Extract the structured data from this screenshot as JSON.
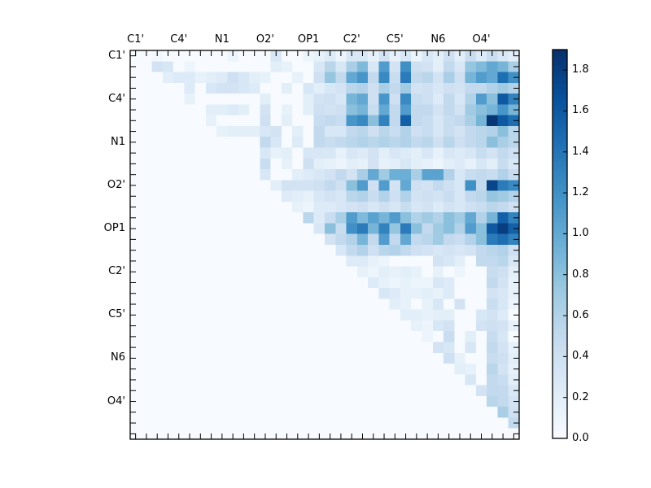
{
  "figure": {
    "background": "#ffffff"
  },
  "chart_data": {
    "type": "heatmap",
    "title": "",
    "n": 36,
    "cells_per_group": 4,
    "x_axis_labels": [
      "C1'",
      "C4'",
      "N1",
      "O2'",
      "OP1",
      "C2'",
      "C5'",
      "N6",
      "O4'"
    ],
    "y_axis_labels": [
      "C1'",
      "C4'",
      "N1",
      "O2'",
      "OP1",
      "C2'",
      "C5'",
      "N6",
      "O4'"
    ],
    "colormap": "Blues",
    "colormap_hex_stops": [
      "#f7fbff",
      "#deebf7",
      "#c6dbef",
      "#9ecae1",
      "#6baed6",
      "#4292c6",
      "#2171b5",
      "#08519c",
      "#08306b"
    ],
    "vmin": 0.0,
    "vmax": 1.9,
    "colorbar_tick_labels": [
      "0.0",
      "0.2",
      "0.4",
      "0.6",
      "0.8",
      "1.0",
      "1.2",
      "1.4",
      "1.6",
      "1.8"
    ],
    "colorbar_tick_values": [
      0.0,
      0.2,
      0.4,
      0.6,
      0.8,
      1.0,
      1.2,
      1.4,
      1.6,
      1.8
    ],
    "grid": false,
    "legend": false,
    "matrix": [
      [
        0,
        0,
        0.05,
        0,
        0,
        0,
        0,
        0,
        0,
        0.1,
        0,
        0,
        0,
        0.3,
        0,
        0,
        0.1,
        0.15,
        0.25,
        0.1,
        0.3,
        0.3,
        0.15,
        0.35,
        0.15,
        0.3,
        0.1,
        0.3,
        0.2,
        0.4,
        0.2,
        0.45,
        0.25,
        0.45,
        0.3,
        0.2
      ],
      [
        0,
        0,
        0.35,
        0.3,
        0,
        0.1,
        0,
        0,
        0,
        0,
        0,
        0,
        0,
        0.2,
        0.15,
        0,
        0,
        0.3,
        0.55,
        0.3,
        0.65,
        0.85,
        0.3,
        1.1,
        0.35,
        1.2,
        0.4,
        0.35,
        0.2,
        0.5,
        0.3,
        0.75,
        0.85,
        1.0,
        0.9,
        0.65
      ],
      [
        0,
        0,
        0,
        0.2,
        0.25,
        0.25,
        0.15,
        0.2,
        0.25,
        0.4,
        0.3,
        0.2,
        0.15,
        0,
        0,
        0.15,
        0,
        0.4,
        0.75,
        0.5,
        1.0,
        1.15,
        0.5,
        1.25,
        0.45,
        1.35,
        0.5,
        0.55,
        0.35,
        0.65,
        0.4,
        0.9,
        1.1,
        1.0,
        1.45,
        1.2
      ],
      [
        0,
        0,
        0,
        0,
        0,
        0.25,
        0,
        0.3,
        0.35,
        0.35,
        0.3,
        0.25,
        0,
        0,
        0.2,
        0,
        0.3,
        0.2,
        0.3,
        0.35,
        0.55,
        0.6,
        0.4,
        0.65,
        0.5,
        0.7,
        0.35,
        0.4,
        0.3,
        0.4,
        0.35,
        0.5,
        0.5,
        0.6,
        0.7,
        0.6
      ],
      [
        0,
        0,
        0,
        0,
        0,
        0.15,
        0,
        0,
        0,
        0,
        0,
        0,
        0.2,
        0,
        0,
        0,
        0.2,
        0.35,
        0.4,
        0.3,
        0.9,
        1.0,
        0.4,
        1.15,
        0.4,
        1.25,
        0.45,
        0.4,
        0.25,
        0.5,
        0.3,
        0.6,
        1.1,
        0.8,
        1.6,
        1.3
      ],
      [
        0,
        0,
        0,
        0,
        0,
        0,
        0,
        0.2,
        0.2,
        0.25,
        0.2,
        0,
        0.35,
        0,
        0.15,
        0,
        0.2,
        0.4,
        0.35,
        0.4,
        0.8,
        0.9,
        0.45,
        1.0,
        0.5,
        1.1,
        0.5,
        0.5,
        0.35,
        0.5,
        0.35,
        0.7,
        0.8,
        0.9,
        1.15,
        0.9
      ],
      [
        0,
        0,
        0,
        0,
        0,
        0,
        0,
        0.15,
        0,
        0,
        0,
        0,
        0.4,
        0,
        0.2,
        0,
        0,
        0.45,
        0.5,
        0.45,
        1.15,
        1.25,
        0.8,
        1.3,
        0.5,
        1.55,
        0.5,
        0.45,
        0.3,
        0.45,
        0.5,
        0.65,
        0.9,
        1.85,
        1.6,
        1.45
      ],
      [
        0,
        0,
        0,
        0,
        0,
        0,
        0,
        0,
        0.15,
        0.2,
        0.2,
        0.2,
        0.3,
        0.35,
        0,
        0.2,
        0,
        0.5,
        0.3,
        0.3,
        0.5,
        0.55,
        0.4,
        0.55,
        0.45,
        0.6,
        0.4,
        0.45,
        0.3,
        0.45,
        0.35,
        0.5,
        0.55,
        0.6,
        0.8,
        0.55
      ],
      [
        0,
        0,
        0,
        0,
        0,
        0,
        0,
        0,
        0,
        0,
        0,
        0,
        0.5,
        0.3,
        0,
        0.25,
        0,
        0.5,
        0.45,
        0.5,
        0.55,
        0.6,
        0.55,
        0.6,
        0.55,
        0.6,
        0.5,
        0.55,
        0.4,
        0.55,
        0.4,
        0.5,
        0.55,
        0.8,
        0.65,
        0.55
      ],
      [
        0,
        0,
        0,
        0,
        0,
        0,
        0,
        0,
        0,
        0,
        0,
        0,
        0.3,
        0.15,
        0.2,
        0,
        0.3,
        0.3,
        0.3,
        0.15,
        0.3,
        0.25,
        0.35,
        0.2,
        0.3,
        0.25,
        0.2,
        0.3,
        0.15,
        0.3,
        0.25,
        0.3,
        0.45,
        0.35,
        0.5,
        0.4
      ],
      [
        0,
        0,
        0,
        0,
        0,
        0,
        0,
        0,
        0,
        0,
        0,
        0,
        0.45,
        0,
        0.15,
        0,
        0.4,
        0.2,
        0.15,
        0.1,
        0.2,
        0.15,
        0.35,
        0.15,
        0.2,
        0.3,
        0.2,
        0.15,
        0.1,
        0.2,
        0.25,
        0.15,
        0.3,
        0.2,
        0.45,
        0.3
      ],
      [
        0,
        0,
        0,
        0,
        0,
        0,
        0,
        0,
        0,
        0,
        0,
        0,
        0.3,
        0,
        0,
        0.2,
        0.25,
        0.3,
        0.35,
        0.5,
        0.35,
        0.65,
        1.0,
        0.7,
        0.95,
        0.95,
        0.65,
        1.05,
        1.05,
        0.6,
        0.3,
        0.45,
        0.5,
        0.45,
        0.6,
        0.45
      ],
      [
        0,
        0,
        0,
        0,
        0,
        0,
        0,
        0,
        0,
        0,
        0,
        0,
        0,
        0.2,
        0.35,
        0.35,
        0.35,
        0.4,
        0.5,
        0.4,
        0.8,
        1.1,
        0.4,
        1.1,
        0.35,
        1.0,
        0.4,
        0.35,
        0.5,
        0.4,
        0.3,
        1.2,
        0.5,
        1.75,
        1.35,
        1.25
      ],
      [
        0,
        0,
        0,
        0,
        0,
        0,
        0,
        0,
        0,
        0,
        0,
        0,
        0,
        0,
        0.25,
        0.2,
        0.15,
        0.3,
        0.35,
        0.3,
        0.55,
        0.6,
        0.45,
        0.6,
        0.4,
        0.6,
        0.35,
        0.4,
        0.35,
        0.45,
        0.3,
        0.5,
        0.55,
        0.75,
        0.7,
        0.6
      ],
      [
        0,
        0,
        0,
        0,
        0,
        0,
        0,
        0,
        0,
        0,
        0,
        0,
        0,
        0,
        0,
        0.15,
        0.1,
        0.25,
        0.25,
        0.3,
        0.35,
        0.4,
        0.3,
        0.4,
        0.3,
        0.45,
        0.3,
        0.35,
        0.25,
        0.35,
        0.3,
        0.4,
        0.45,
        0.55,
        0.5,
        0.4
      ],
      [
        0,
        0,
        0,
        0,
        0,
        0,
        0,
        0,
        0,
        0,
        0,
        0,
        0,
        0,
        0,
        0,
        0.55,
        0.25,
        0.45,
        0.65,
        1.1,
        0.85,
        1.05,
        0.9,
        1.1,
        0.8,
        0.6,
        0.7,
        0.6,
        0.8,
        0.7,
        1.0,
        0.6,
        0.9,
        1.55,
        1.3
      ],
      [
        0,
        0,
        0,
        0,
        0,
        0,
        0,
        0,
        0,
        0,
        0,
        0,
        0,
        0,
        0,
        0,
        0,
        0.3,
        0.8,
        0.45,
        1.2,
        1.35,
        0.9,
        1.3,
        0.75,
        1.35,
        0.8,
        0.5,
        0.7,
        0.8,
        0.6,
        1.1,
        0.8,
        1.6,
        1.8,
        1.55
      ],
      [
        0,
        0,
        0,
        0,
        0,
        0,
        0,
        0,
        0,
        0,
        0,
        0,
        0,
        0,
        0,
        0,
        0,
        0,
        0.35,
        0.5,
        0.6,
        0.9,
        0.5,
        1.1,
        0.5,
        1.0,
        0.5,
        0.55,
        0.7,
        0.5,
        0.45,
        0.6,
        0.8,
        1.35,
        1.45,
        1.3
      ],
      [
        0,
        0,
        0,
        0,
        0,
        0,
        0,
        0,
        0,
        0,
        0,
        0,
        0,
        0,
        0,
        0,
        0,
        0,
        0,
        0.3,
        0.5,
        0.6,
        0.4,
        0.55,
        0.6,
        0.5,
        0.4,
        0.35,
        0.3,
        0.35,
        0.3,
        0.35,
        0.5,
        0.55,
        0.6,
        0.4
      ],
      [
        0,
        0,
        0,
        0,
        0,
        0,
        0,
        0,
        0,
        0,
        0,
        0,
        0,
        0,
        0,
        0,
        0,
        0,
        0,
        0,
        0.25,
        0.25,
        0.15,
        0.1,
        0,
        0,
        0,
        0,
        0.35,
        0.3,
        0.2,
        0,
        0.5,
        0.5,
        0.55,
        0.3
      ],
      [
        0,
        0,
        0,
        0,
        0,
        0,
        0,
        0,
        0,
        0,
        0,
        0,
        0,
        0,
        0,
        0,
        0,
        0,
        0,
        0,
        0,
        0.15,
        0.1,
        0.2,
        0.15,
        0.2,
        0.15,
        0,
        0.15,
        0,
        0.1,
        0,
        0,
        0.45,
        0.4,
        0.2
      ],
      [
        0,
        0,
        0,
        0,
        0,
        0,
        0,
        0,
        0,
        0,
        0,
        0,
        0,
        0,
        0,
        0,
        0,
        0,
        0,
        0,
        0,
        0,
        0.25,
        0.15,
        0.1,
        0.15,
        0.1,
        0.1,
        0.3,
        0.25,
        0,
        0,
        0,
        0.5,
        0.35,
        0.15
      ],
      [
        0,
        0,
        0,
        0,
        0,
        0,
        0,
        0,
        0,
        0,
        0,
        0,
        0,
        0,
        0,
        0,
        0,
        0,
        0,
        0,
        0,
        0,
        0,
        0.3,
        0.25,
        0.15,
        0.15,
        0.2,
        0.15,
        0.25,
        0,
        0,
        0,
        0.35,
        0.3,
        0.15
      ],
      [
        0,
        0,
        0,
        0,
        0,
        0,
        0,
        0,
        0,
        0,
        0,
        0,
        0,
        0,
        0,
        0,
        0,
        0,
        0,
        0,
        0,
        0,
        0,
        0,
        0.2,
        0.15,
        0,
        0.15,
        0.3,
        0,
        0.35,
        0,
        0,
        0.45,
        0.3,
        0.1
      ],
      [
        0,
        0,
        0,
        0,
        0,
        0,
        0,
        0,
        0,
        0,
        0,
        0,
        0,
        0,
        0,
        0,
        0,
        0,
        0,
        0,
        0,
        0,
        0,
        0,
        0,
        0.2,
        0.2,
        0.15,
        0.2,
        0.2,
        0,
        0,
        0.3,
        0.35,
        0.25,
        0
      ],
      [
        0,
        0,
        0,
        0,
        0,
        0,
        0,
        0,
        0,
        0,
        0,
        0,
        0,
        0,
        0,
        0,
        0,
        0,
        0,
        0,
        0,
        0,
        0,
        0,
        0,
        0,
        0.15,
        0.1,
        0.3,
        0.35,
        0,
        0,
        0.35,
        0.4,
        0.35,
        0.15
      ],
      [
        0,
        0,
        0,
        0,
        0,
        0,
        0,
        0,
        0,
        0,
        0,
        0,
        0,
        0,
        0,
        0,
        0,
        0,
        0,
        0,
        0,
        0,
        0,
        0,
        0,
        0,
        0,
        0.1,
        0,
        0.45,
        0,
        0.2,
        0,
        0.45,
        0.3,
        0
      ],
      [
        0,
        0,
        0,
        0,
        0,
        0,
        0,
        0,
        0,
        0,
        0,
        0,
        0,
        0,
        0,
        0,
        0,
        0,
        0,
        0,
        0,
        0,
        0,
        0,
        0,
        0,
        0,
        0,
        0.35,
        0.3,
        0,
        0.3,
        0,
        0.5,
        0.35,
        0.15
      ],
      [
        0,
        0,
        0,
        0,
        0,
        0,
        0,
        0,
        0,
        0,
        0,
        0,
        0,
        0,
        0,
        0,
        0,
        0,
        0,
        0,
        0,
        0,
        0,
        0,
        0,
        0,
        0,
        0,
        0,
        0.4,
        0.15,
        0,
        0,
        0.45,
        0.4,
        0.2
      ],
      [
        0,
        0,
        0,
        0,
        0,
        0,
        0,
        0,
        0,
        0,
        0,
        0,
        0,
        0,
        0,
        0,
        0,
        0,
        0,
        0,
        0,
        0,
        0,
        0,
        0,
        0,
        0,
        0,
        0,
        0,
        0.2,
        0.15,
        0,
        0.55,
        0.35,
        0.15
      ],
      [
        0,
        0,
        0,
        0,
        0,
        0,
        0,
        0,
        0,
        0,
        0,
        0,
        0,
        0,
        0,
        0,
        0,
        0,
        0,
        0,
        0,
        0,
        0,
        0,
        0,
        0,
        0,
        0,
        0,
        0,
        0,
        0.3,
        0,
        0.5,
        0.45,
        0.2
      ],
      [
        0,
        0,
        0,
        0,
        0,
        0,
        0,
        0,
        0,
        0,
        0,
        0,
        0,
        0,
        0,
        0,
        0,
        0,
        0,
        0,
        0,
        0,
        0,
        0,
        0,
        0,
        0,
        0,
        0,
        0,
        0,
        0,
        0.35,
        0.5,
        0.5,
        0.3
      ],
      [
        0,
        0,
        0,
        0,
        0,
        0,
        0,
        0,
        0,
        0,
        0,
        0,
        0,
        0,
        0,
        0,
        0,
        0,
        0,
        0,
        0,
        0,
        0,
        0,
        0,
        0,
        0,
        0,
        0,
        0,
        0,
        0,
        0,
        0.55,
        0.5,
        0.35
      ],
      [
        0,
        0,
        0,
        0,
        0,
        0,
        0,
        0,
        0,
        0,
        0,
        0,
        0,
        0,
        0,
        0,
        0,
        0,
        0,
        0,
        0,
        0,
        0,
        0,
        0,
        0,
        0,
        0,
        0,
        0,
        0,
        0,
        0,
        0,
        0.65,
        0.4
      ],
      [
        0,
        0,
        0,
        0,
        0,
        0,
        0,
        0,
        0,
        0,
        0,
        0,
        0,
        0,
        0,
        0,
        0,
        0,
        0,
        0,
        0,
        0,
        0,
        0,
        0,
        0,
        0,
        0,
        0,
        0,
        0,
        0,
        0,
        0,
        0,
        0.5
      ],
      [
        0,
        0,
        0,
        0,
        0,
        0,
        0,
        0,
        0,
        0,
        0,
        0,
        0,
        0,
        0,
        0,
        0,
        0,
        0,
        0,
        0,
        0,
        0,
        0,
        0,
        0,
        0,
        0,
        0,
        0,
        0,
        0,
        0,
        0,
        0,
        0
      ]
    ]
  }
}
